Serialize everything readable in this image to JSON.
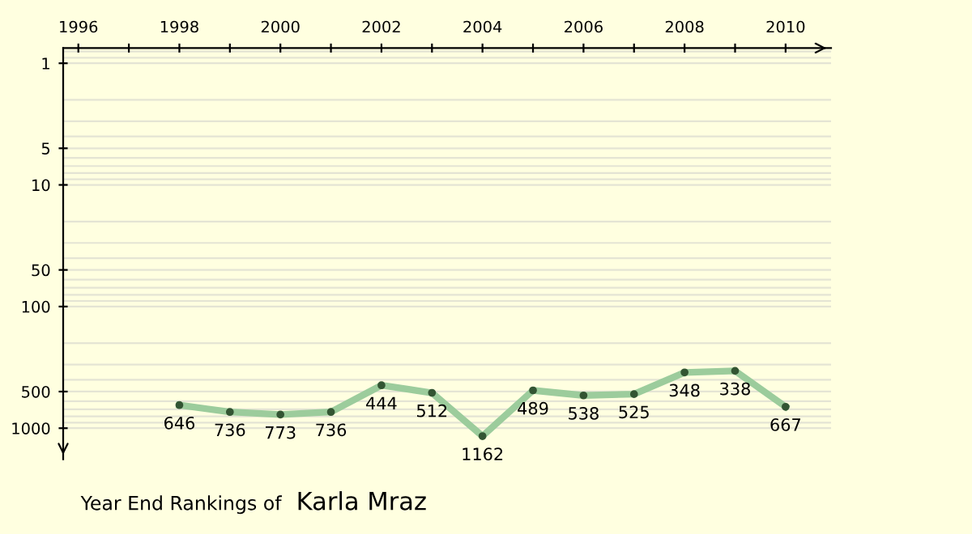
{
  "chart_data": {
    "type": "line",
    "title": "Year End Rankings of",
    "subtitle": "Karla Mraz",
    "x": [
      1998,
      1999,
      2000,
      2001,
      2002,
      2003,
      2004,
      2005,
      2006,
      2007,
      2008,
      2009,
      2010
    ],
    "series": [
      {
        "color": "#9ccc9c",
        "values": [
          646,
          736,
          773,
          736,
          444,
          512,
          1162,
          489,
          538,
          525,
          348,
          338,
          667
        ]
      }
    ],
    "data_labels": true,
    "log": "y",
    "marker": "circle",
    "line_style": "solid",
    "grid": "y",
    "xlim": [
      1995.7,
      2010.9
    ],
    "xticks": [
      1996,
      {
        "value": 1997,
        "label": null
      },
      1998,
      {
        "value": 1999,
        "label": null
      },
      2000,
      {
        "value": 2001,
        "label": null
      },
      2002,
      {
        "value": 2003,
        "label": null
      },
      2004,
      {
        "value": 2005,
        "label": null
      },
      2006,
      {
        "value": 2007,
        "label": null
      },
      2008,
      {
        "value": 2009,
        "label": null
      },
      2010
    ],
    "ylim": [
      1800,
      0.75
    ],
    "yticks": [
      1,
      5,
      10,
      50,
      100,
      500,
      1000
    ]
  }
}
